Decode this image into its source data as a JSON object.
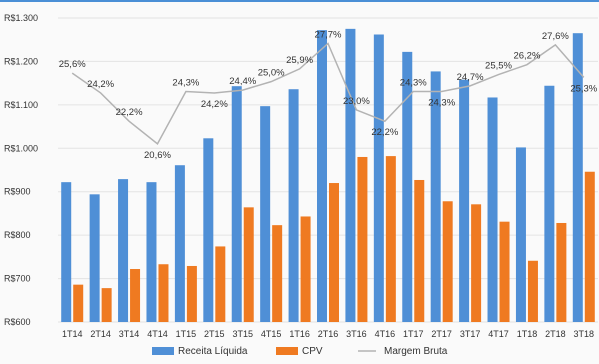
{
  "chart_data": {
    "type": "bar",
    "title": "",
    "categories": [
      "1T14",
      "2T14",
      "3T14",
      "4T14",
      "1T15",
      "2T15",
      "3T15",
      "4T15",
      "1T16",
      "2T16",
      "3T16",
      "4T16",
      "1T17",
      "2T17",
      "3T17",
      "4T17",
      "1T18",
      "2T18",
      "3T18"
    ],
    "ylim": [
      600,
      1300
    ],
    "yticks": [
      "R$600",
      "R$700",
      "R$800",
      "R$900",
      "R$1.000",
      "R$1.100",
      "R$1.200",
      "R$1.300"
    ],
    "series": [
      {
        "name": "Receita Líquida",
        "type": "bar",
        "color": "#4f8fd6",
        "values": [
          922,
          894,
          929,
          922,
          961,
          1023,
          1143,
          1097,
          1136,
          1272,
          1275,
          1262,
          1222,
          1177,
          1158,
          1117,
          1002,
          1144,
          1265
        ]
      },
      {
        "name": "CPV",
        "type": "bar",
        "color": "#ef7a21",
        "values": [
          686,
          678,
          722,
          733,
          729,
          774,
          864,
          823,
          843,
          920,
          980,
          982,
          927,
          878,
          871,
          831,
          741,
          828,
          946
        ]
      },
      {
        "name": "Margem Bruta",
        "type": "line",
        "color": "#b3b3b3",
        "values": [
          25.6,
          24.2,
          22.2,
          20.6,
          24.3,
          24.2,
          24.4,
          25.0,
          25.9,
          27.7,
          23.0,
          22.2,
          24.3,
          24.3,
          24.7,
          25.5,
          26.2,
          27.6,
          25.3
        ],
        "labels": [
          "25,6%",
          "24,2%",
          "22,2%",
          "20,6%",
          "24,3%",
          "24,2%",
          "24,4%",
          "25,0%",
          "25,9%",
          "27,7%",
          "23,0%",
          "22,2%",
          "24,3%",
          "24,3%",
          "24,7%",
          "25,5%",
          "26,2%",
          "27,6%",
          "25,3%"
        ]
      }
    ],
    "legend": [
      "Receita Líquida",
      "CPV",
      "Margem Bruta"
    ],
    "legend_position": "bottom",
    "grid": true
  }
}
